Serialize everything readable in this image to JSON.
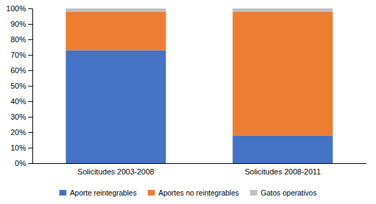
{
  "chart_data": {
    "type": "bar",
    "stacked": true,
    "categories": [
      "Solicitudes 2003-2008",
      "Solicitudes 2008-2011"
    ],
    "series": [
      {
        "name": "Aporte reintegrables",
        "color": "#4472C4",
        "values": [
          0.73,
          0.18
        ]
      },
      {
        "name": "Aportes no reintegrables",
        "color": "#ED7D31",
        "values": [
          0.25,
          0.8
        ]
      },
      {
        "name": "Gatos operativos",
        "color": "#BFBFBF",
        "values": [
          0.02,
          0.02
        ]
      }
    ],
    "ylim": [
      0,
      1.0
    ],
    "yticks": [
      {
        "value": 0.0,
        "label": "0%"
      },
      {
        "value": 0.1,
        "label": "10%"
      },
      {
        "value": 0.2,
        "label": "20%"
      },
      {
        "value": 0.3,
        "label": "30%"
      },
      {
        "value": 0.4,
        "label": "40%"
      },
      {
        "value": 0.5,
        "label": "50%"
      },
      {
        "value": 0.6,
        "label": "60%"
      },
      {
        "value": 0.7,
        "label": "70%"
      },
      {
        "value": 0.8,
        "label": "80%"
      },
      {
        "value": 0.9,
        "label": "90%"
      },
      {
        "value": 1.0,
        "label": "100%"
      }
    ],
    "grid": false,
    "legend": "bottom"
  }
}
